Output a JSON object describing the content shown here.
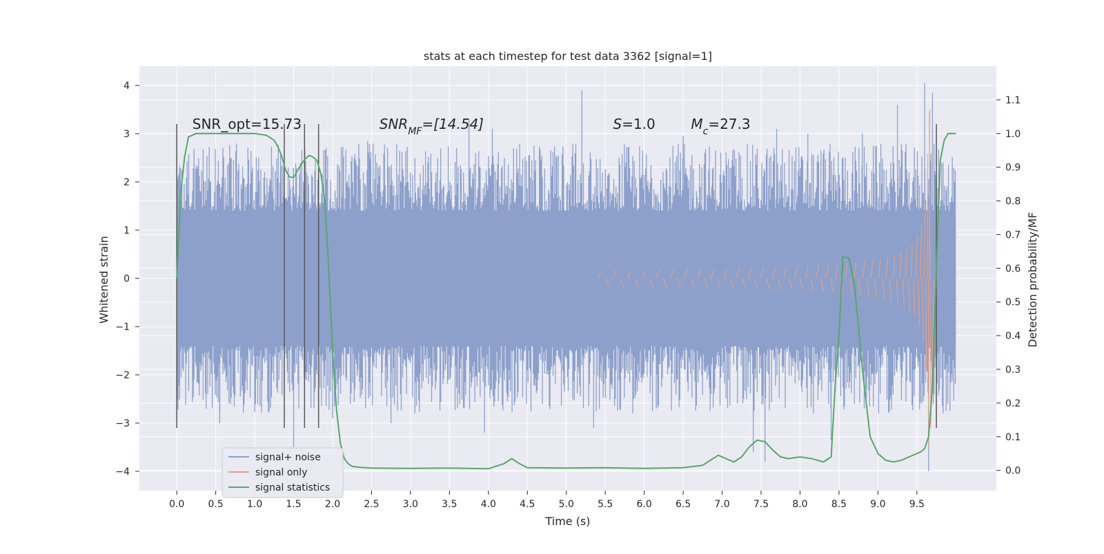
{
  "chart_data": {
    "type": "line",
    "title": "stats at each timestep for test data 3362 [signal=1]",
    "xlabel": "Time (s)",
    "ylabel": "Whitened strain",
    "y2label": "Detection probability/MF",
    "xlim": [
      -0.48,
      10.52
    ],
    "ylim": [
      -4.4,
      4.4
    ],
    "y2lim": [
      -0.06,
      1.2
    ],
    "grid": true,
    "xticks": [
      0.0,
      0.5,
      1.0,
      1.5,
      2.0,
      2.5,
      3.0,
      3.5,
      4.0,
      4.5,
      5.0,
      5.5,
      6.0,
      6.5,
      7.0,
      7.5,
      8.0,
      8.5,
      9.0,
      9.5
    ],
    "xtick_labels": [
      "0.0",
      "0.5",
      "1.0",
      "1.5",
      "2.0",
      "2.5",
      "3.0",
      "3.5",
      "4.0",
      "4.5",
      "5.0",
      "5.5",
      "6.0",
      "6.5",
      "7.0",
      "7.5",
      "8.0",
      "8.5",
      "9.0",
      "9.5"
    ],
    "yticks": [
      -4,
      -3,
      -2,
      -1,
      0,
      1,
      2,
      3,
      4
    ],
    "ytick_labels": [
      "−4",
      "−3",
      "−2",
      "−1",
      "0",
      "1",
      "2",
      "3",
      "4"
    ],
    "y2ticks": [
      0.0,
      0.1,
      0.2,
      0.3,
      0.4,
      0.5,
      0.6,
      0.7,
      0.8,
      0.9,
      1.0,
      1.1
    ],
    "y2tick_labels": [
      "0.0",
      "0.1",
      "0.2",
      "0.3",
      "0.4",
      "0.5",
      "0.6",
      "0.7",
      "0.8",
      "0.9",
      "1.0",
      "1.1"
    ],
    "legend_placement": "lower-left",
    "series": [
      {
        "name": "signal+ noise",
        "axis": "left",
        "color": "#8da0cb",
        "kind": "noise",
        "t_start": 0.0,
        "t_end": 10.0,
        "core_amplitude": 1.3,
        "peaks": [
          {
            "t": 0.0,
            "v": 2.0
          },
          {
            "t": 0.25,
            "v": 2.35
          },
          {
            "t": 0.55,
            "v": -3.0
          },
          {
            "t": 1.05,
            "v": 2.5
          },
          {
            "t": 1.5,
            "v": -3.5
          },
          {
            "t": 2.0,
            "v": -2.9
          },
          {
            "t": 2.45,
            "v": 2.85
          },
          {
            "t": 2.75,
            "v": -3.0
          },
          {
            "t": 3.75,
            "v": 3.3
          },
          {
            "t": 3.95,
            "v": -3.2
          },
          {
            "t": 4.05,
            "v": 3.1
          },
          {
            "t": 5.2,
            "v": 3.9
          },
          {
            "t": 5.35,
            "v": -3.1
          },
          {
            "t": 6.5,
            "v": 2.95
          },
          {
            "t": 7.4,
            "v": -3.6
          },
          {
            "t": 7.55,
            "v": -3.8
          },
          {
            "t": 7.7,
            "v": 3.1
          },
          {
            "t": 8.1,
            "v": 3.0
          },
          {
            "t": 8.4,
            "v": -3.35
          },
          {
            "t": 8.8,
            "v": 3.0
          },
          {
            "t": 9.25,
            "v": 3.6
          },
          {
            "t": 9.6,
            "v": 4.05
          },
          {
            "t": 9.65,
            "v": -4.0
          },
          {
            "t": 9.7,
            "v": 3.85
          }
        ]
      },
      {
        "name": "signal only",
        "axis": "left",
        "color": "#e5a085",
        "kind": "chirp",
        "t_start": 5.4,
        "t_peak": 9.66,
        "t_end": 9.72,
        "peak_amplitude": 3.45,
        "ringdown_amplitude": -3.1
      },
      {
        "name": "signal statistics",
        "axis": "right",
        "color": "#55a868",
        "kind": "line",
        "x": [
          0.0,
          0.05,
          0.1,
          0.15,
          0.25,
          0.5,
          1.0,
          1.15,
          1.25,
          1.3,
          1.35,
          1.4,
          1.45,
          1.5,
          1.55,
          1.6,
          1.65,
          1.7,
          1.75,
          1.8,
          1.85,
          1.9,
          1.95,
          2.0,
          2.05,
          2.1,
          2.15,
          2.2,
          2.25,
          2.35,
          2.5,
          3.0,
          3.5,
          4.0,
          4.2,
          4.3,
          4.4,
          4.5,
          5.0,
          5.5,
          6.0,
          6.5,
          6.75,
          6.85,
          6.95,
          7.05,
          7.15,
          7.25,
          7.35,
          7.45,
          7.55,
          7.65,
          7.75,
          7.85,
          8.0,
          8.15,
          8.3,
          8.4,
          8.45,
          8.5,
          8.55,
          8.63,
          8.7,
          8.8,
          8.9,
          9.0,
          9.1,
          9.2,
          9.3,
          9.4,
          9.5,
          9.55,
          9.6,
          9.65,
          9.7,
          9.75,
          9.8,
          9.85,
          9.9,
          10.0
        ],
        "y": [
          0.57,
          0.82,
          0.93,
          0.99,
          1.0,
          1.0,
          1.0,
          0.995,
          0.98,
          0.96,
          0.93,
          0.89,
          0.87,
          0.87,
          0.89,
          0.91,
          0.925,
          0.935,
          0.93,
          0.92,
          0.88,
          0.8,
          0.6,
          0.35,
          0.18,
          0.08,
          0.035,
          0.02,
          0.012,
          0.009,
          0.007,
          0.006,
          0.007,
          0.005,
          0.02,
          0.035,
          0.02,
          0.008,
          0.007,
          0.008,
          0.006,
          0.008,
          0.015,
          0.03,
          0.045,
          0.035,
          0.025,
          0.04,
          0.07,
          0.09,
          0.085,
          0.06,
          0.04,
          0.035,
          0.04,
          0.035,
          0.025,
          0.04,
          0.25,
          0.4,
          0.635,
          0.63,
          0.55,
          0.3,
          0.1,
          0.05,
          0.03,
          0.025,
          0.03,
          0.04,
          0.05,
          0.055,
          0.065,
          0.1,
          0.25,
          0.6,
          0.92,
          0.98,
          1.0,
          1.0
        ]
      }
    ],
    "vertical_markers": {
      "color": "#555555",
      "x": [
        0.0,
        1.38,
        1.64,
        1.82,
        9.75
      ],
      "y_from": -3.1,
      "y_to": 3.2
    },
    "annotations": [
      {
        "id": "snr-opt",
        "t": 0.2,
        "v": 3.1,
        "text": "SNR_opt=15.73",
        "kind": "plain"
      },
      {
        "id": "snr-mf",
        "t": 2.6,
        "v": 3.1,
        "base": "SNR",
        "sub": "MF",
        "tail": "=[14.54]",
        "kind": "snrmf"
      },
      {
        "id": "s-value",
        "t": 5.6,
        "v": 3.1,
        "base": "S",
        "tail": "=1.0",
        "kind": "italic"
      },
      {
        "id": "mc-value",
        "t": 6.6,
        "v": 3.1,
        "base": "M",
        "sub": "c",
        "tail": "=27.3",
        "kind": "italic-sub"
      }
    ]
  }
}
